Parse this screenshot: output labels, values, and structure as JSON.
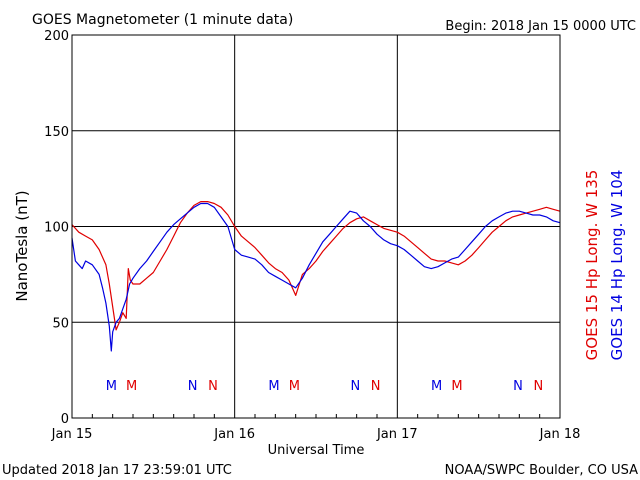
{
  "header": {
    "title": "GOES Magnetometer (1 minute data)",
    "begin_label": "Begin:  2018 Jan 15 0000 UTC"
  },
  "footer": {
    "updated": "Updated 2018 Jan 17 23:59:01 UTC",
    "source": "NOAA/SWPC Boulder, CO USA"
  },
  "colors": {
    "goes15": "#e00000",
    "goes14": "#0000e0",
    "grid": "#000000",
    "background": "#ffffff"
  },
  "chart_data": {
    "type": "line",
    "title": "GOES Magnetometer (1 minute data)",
    "xlabel": "Universal Time",
    "ylabel": "NanoTesla (nT)",
    "xlim": [
      0,
      72
    ],
    "ylim": [
      0,
      200
    ],
    "x_unit": "hours since 2018 Jan 15 0000 UTC",
    "grid": true,
    "y_ticks": [
      0,
      50,
      100,
      150,
      200
    ],
    "x_ticks": [
      {
        "x": 0,
        "label": "Jan 15"
      },
      {
        "x": 24,
        "label": "Jan 16"
      },
      {
        "x": 48,
        "label": "Jan 17"
      },
      {
        "x": 72,
        "label": "Jan 18"
      }
    ],
    "legend": [
      {
        "name": "GOES 15 Hp  Long. W 135",
        "color": "#e00000"
      },
      {
        "name": "GOES 14 Hp  Long. W 104",
        "color": "#0000e0"
      }
    ],
    "markers": [
      {
        "x": 5.8,
        "label": "M",
        "series": "GOES 14"
      },
      {
        "x": 8.8,
        "label": "M",
        "series": "GOES 15"
      },
      {
        "x": 17.8,
        "label": "N",
        "series": "GOES 14"
      },
      {
        "x": 20.8,
        "label": "N",
        "series": "GOES 15"
      },
      {
        "x": 29.8,
        "label": "M",
        "series": "GOES 14"
      },
      {
        "x": 32.8,
        "label": "M",
        "series": "GOES 15"
      },
      {
        "x": 41.8,
        "label": "N",
        "series": "GOES 14"
      },
      {
        "x": 44.8,
        "label": "N",
        "series": "GOES 15"
      },
      {
        "x": 53.8,
        "label": "M",
        "series": "GOES 14"
      },
      {
        "x": 56.8,
        "label": "M",
        "series": "GOES 15"
      },
      {
        "x": 65.8,
        "label": "N",
        "series": "GOES 14"
      },
      {
        "x": 68.8,
        "label": "N",
        "series": "GOES 15"
      }
    ],
    "series": [
      {
        "name": "GOES 15 Hp  Long. W 135",
        "color": "#e00000",
        "x": [
          0,
          1,
          2,
          3,
          4,
          5,
          5.5,
          6,
          6.5,
          7,
          7.5,
          8,
          8.3,
          8.6,
          9,
          10,
          11,
          12,
          13,
          14,
          15,
          16,
          17,
          18,
          19,
          20,
          21,
          22,
          23,
          24,
          25,
          26,
          27,
          28,
          29,
          30,
          31,
          32,
          33,
          34,
          35,
          36,
          37,
          38,
          39,
          40,
          41,
          42,
          43,
          44,
          45,
          46,
          47,
          48,
          49,
          50,
          51,
          52,
          53,
          54,
          55,
          56,
          57,
          58,
          59,
          60,
          61,
          62,
          63,
          64,
          65,
          66,
          67,
          68,
          69,
          70,
          71,
          72
        ],
        "y": [
          101,
          97,
          95,
          93,
          88,
          80,
          70,
          58,
          46,
          50,
          55,
          52,
          78,
          72,
          70,
          70,
          73,
          76,
          82,
          88,
          95,
          102,
          107,
          111,
          113,
          113,
          112,
          110,
          106,
          100,
          95,
          92,
          89,
          85,
          81,
          78,
          76,
          72,
          64,
          75,
          78,
          82,
          87,
          91,
          95,
          99,
          102,
          104,
          105,
          103,
          101,
          99,
          98,
          97,
          95,
          92,
          89,
          86,
          83,
          82,
          82,
          81,
          80,
          82,
          85,
          89,
          93,
          97,
          100,
          103,
          105,
          106,
          107,
          108,
          109,
          110,
          109,
          108
        ]
      },
      {
        "name": "GOES 14 Hp  Long. W 104",
        "color": "#0000e0",
        "x": [
          0,
          0.5,
          1,
          1.5,
          2,
          3,
          4,
          4.5,
          5,
          5.5,
          5.8,
          6,
          6.5,
          7,
          8,
          8.5,
          9,
          10,
          11,
          12,
          13,
          14,
          15,
          16,
          17,
          18,
          19,
          20,
          21,
          22,
          23,
          24,
          25,
          26,
          27,
          28,
          29,
          30,
          31,
          32,
          33,
          34,
          35,
          36,
          37,
          38,
          39,
          40,
          41,
          42,
          43,
          44,
          45,
          46,
          47,
          48,
          49,
          50,
          51,
          52,
          53,
          54,
          55,
          56,
          57,
          58,
          59,
          60,
          61,
          62,
          63,
          64,
          65,
          66,
          67,
          68,
          69,
          70,
          71,
          72
        ],
        "y": [
          94,
          82,
          80,
          78,
          82,
          80,
          75,
          68,
          60,
          48,
          35,
          45,
          50,
          52,
          62,
          70,
          73,
          78,
          82,
          87,
          92,
          97,
          101,
          104,
          107,
          110,
          112,
          112,
          110,
          105,
          100,
          88,
          85,
          84,
          83,
          80,
          76,
          74,
          72,
          70,
          68,
          73,
          80,
          86,
          92,
          96,
          100,
          104,
          108,
          107,
          103,
          100,
          96,
          93,
          91,
          90,
          88,
          85,
          82,
          79,
          78,
          79,
          81,
          83,
          84,
          88,
          92,
          96,
          100,
          103,
          105,
          107,
          108,
          108,
          107,
          106,
          106,
          105,
          103,
          102
        ]
      }
    ]
  }
}
